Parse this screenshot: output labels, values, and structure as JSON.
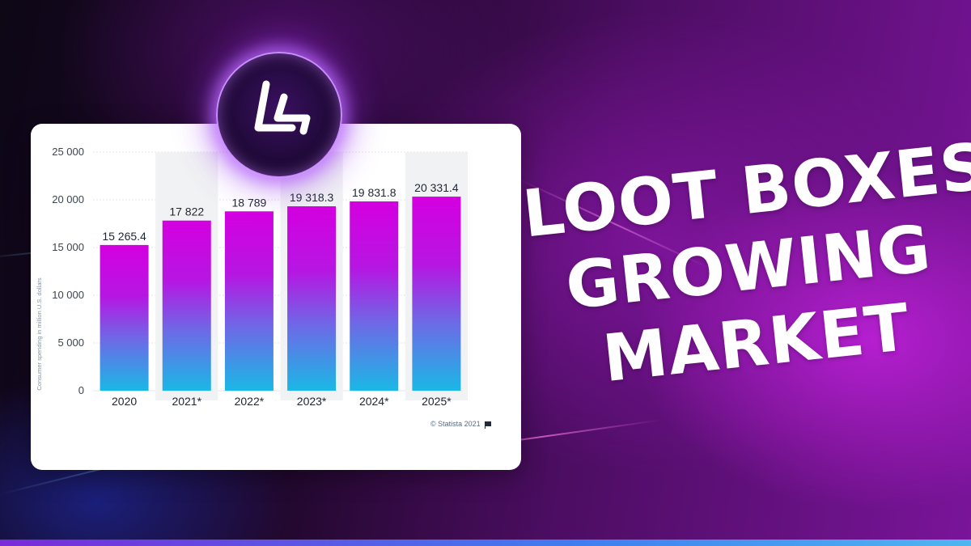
{
  "headline": {
    "line1": "LOOT BOXES",
    "line2": "GROWING",
    "line3": "MARKET"
  },
  "logo": {
    "name": "logo-mark",
    "glow_color": "#c98dff"
  },
  "credit": {
    "text": "© Statista 2021"
  },
  "colors": {
    "bar_top": "#d400e0",
    "bar_bottom": "#1ab8e6",
    "headline_text": "#ffffff",
    "background_accent": "#8b16a8"
  },
  "chart_data": {
    "type": "bar",
    "categories": [
      "2020",
      "2021*",
      "2022*",
      "2023*",
      "2024*",
      "2025*"
    ],
    "values": [
      15265.4,
      17822,
      18789,
      19318.3,
      19831.8,
      20331.4
    ],
    "value_labels": [
      "15 265.4",
      "17 822",
      "18 789",
      "19 318.3",
      "19 831.8",
      "20 331.4"
    ],
    "ylabel": "Consumer spending in million U.S. dollars",
    "ylim": [
      0,
      25000
    ],
    "yticks": [
      0,
      5000,
      10000,
      15000,
      20000,
      25000
    ],
    "ytick_labels": [
      "0",
      "5 000",
      "10 000",
      "15 000",
      "20 000",
      "25 000"
    ],
    "grid": true
  }
}
